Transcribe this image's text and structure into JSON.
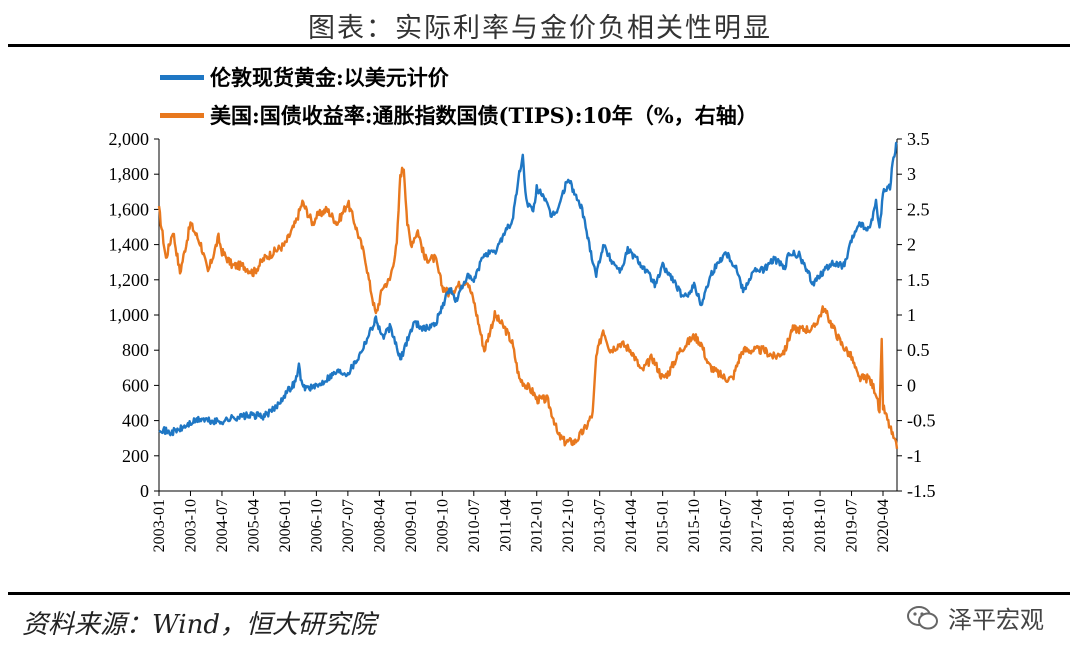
{
  "header": {
    "title": "图表：实际利率与金价负相关性明显"
  },
  "footer": {
    "source": "资料来源：Wind，恒大研究院",
    "brand": "泽平宏观"
  },
  "colors": {
    "gold": "#1f77c4",
    "tips": "#e8781e"
  },
  "chart_data": {
    "type": "line",
    "legend": [
      "伦敦现货黄金:以美元计价",
      "美国:国债收益率:通胀指数国债(TIPS):10年（%，右轴）"
    ],
    "left_axis": {
      "min": 0,
      "max": 2000,
      "ticks": [
        "0",
        "200",
        "400",
        "600",
        "800",
        "1,000",
        "1,200",
        "1,400",
        "1,600",
        "1,800",
        "2,000"
      ]
    },
    "right_axis": {
      "min": -1.5,
      "max": 3.5,
      "ticks": [
        "-1.5",
        "-1",
        "-0.5",
        "0",
        "0.5",
        "1",
        "1.5",
        "2",
        "2.5",
        "3",
        "3.5"
      ]
    },
    "x_ticks": [
      "2003-01",
      "2003-10",
      "2004-07",
      "2005-04",
      "2006-01",
      "2006-10",
      "2007-07",
      "2008-04",
      "2009-01",
      "2009-10",
      "2010-07",
      "2011-04",
      "2012-01",
      "2012-10",
      "2013-07",
      "2014-04",
      "2015-01",
      "2015-10",
      "2016-07",
      "2017-04",
      "2018-01",
      "2018-10",
      "2019-07",
      "2020-04"
    ],
    "x_range": [
      "2003-01",
      "2020-08"
    ],
    "series": [
      {
        "name": "伦敦现货黄金:以美元计价",
        "axis": "left",
        "points": [
          [
            "2003-01",
            360
          ],
          [
            "2003-04",
            330
          ],
          [
            "2003-07",
            350
          ],
          [
            "2003-10",
            385
          ],
          [
            "2004-01",
            410
          ],
          [
            "2004-04",
            395
          ],
          [
            "2004-07",
            395
          ],
          [
            "2004-10",
            415
          ],
          [
            "2005-01",
            425
          ],
          [
            "2005-04",
            430
          ],
          [
            "2005-07",
            425
          ],
          [
            "2005-10",
            465
          ],
          [
            "2006-01",
            550
          ],
          [
            "2006-04",
            620
          ],
          [
            "2006-05",
            710
          ],
          [
            "2006-06",
            590
          ],
          [
            "2006-10",
            590
          ],
          [
            "2007-01",
            640
          ],
          [
            "2007-04",
            680
          ],
          [
            "2007-07",
            670
          ],
          [
            "2007-10",
            760
          ],
          [
            "2008-01",
            890
          ],
          [
            "2008-03",
            980
          ],
          [
            "2008-05",
            870
          ],
          [
            "2008-07",
            930
          ],
          [
            "2008-09",
            820
          ],
          [
            "2008-10",
            740
          ],
          [
            "2008-12",
            860
          ],
          [
            "2009-02",
            960
          ],
          [
            "2009-05",
            920
          ],
          [
            "2009-08",
            950
          ],
          [
            "2009-10",
            1050
          ],
          [
            "2009-12",
            1150
          ],
          [
            "2010-02",
            1080
          ],
          [
            "2010-05",
            1220
          ],
          [
            "2010-07",
            1190
          ],
          [
            "2010-10",
            1350
          ],
          [
            "2011-01",
            1350
          ],
          [
            "2011-04",
            1480
          ],
          [
            "2011-06",
            1530
          ],
          [
            "2011-08",
            1800
          ],
          [
            "2011-09",
            1900
          ],
          [
            "2011-10",
            1650
          ],
          [
            "2011-12",
            1580
          ],
          [
            "2012-01",
            1720
          ],
          [
            "2012-03",
            1680
          ],
          [
            "2012-05",
            1560
          ],
          [
            "2012-07",
            1600
          ],
          [
            "2012-10",
            1780
          ],
          [
            "2012-12",
            1680
          ],
          [
            "2013-02",
            1600
          ],
          [
            "2013-04",
            1400
          ],
          [
            "2013-06",
            1230
          ],
          [
            "2013-08",
            1400
          ],
          [
            "2013-10",
            1320
          ],
          [
            "2014-01",
            1250
          ],
          [
            "2014-03",
            1370
          ],
          [
            "2014-06",
            1310
          ],
          [
            "2014-09",
            1230
          ],
          [
            "2014-11",
            1170
          ],
          [
            "2015-01",
            1280
          ],
          [
            "2015-04",
            1200
          ],
          [
            "2015-07",
            1090
          ],
          [
            "2015-10",
            1170
          ],
          [
            "2015-12",
            1060
          ],
          [
            "2016-03",
            1240
          ],
          [
            "2016-07",
            1360
          ],
          [
            "2016-10",
            1270
          ],
          [
            "2016-12",
            1140
          ],
          [
            "2017-03",
            1250
          ],
          [
            "2017-06",
            1260
          ],
          [
            "2017-09",
            1320
          ],
          [
            "2017-12",
            1260
          ],
          [
            "2018-01",
            1350
          ],
          [
            "2018-04",
            1340
          ],
          [
            "2018-08",
            1180
          ],
          [
            "2018-10",
            1230
          ],
          [
            "2019-01",
            1290
          ],
          [
            "2019-05",
            1280
          ],
          [
            "2019-07",
            1420
          ],
          [
            "2019-09",
            1520
          ],
          [
            "2019-12",
            1480
          ],
          [
            "2020-02",
            1640
          ],
          [
            "2020-03",
            1490
          ],
          [
            "2020-04",
            1700
          ],
          [
            "2020-06",
            1730
          ],
          [
            "2020-07",
            1900
          ],
          [
            "2020-08",
            1980
          ]
        ]
      },
      {
        "name": "美国:国债收益率:通胀指数国债(TIPS):10年（%，右轴）",
        "axis": "right",
        "points": [
          [
            "2003-01",
            2.5
          ],
          [
            "2003-03",
            1.8
          ],
          [
            "2003-05",
            2.2
          ],
          [
            "2003-07",
            1.6
          ],
          [
            "2003-10",
            2.3
          ],
          [
            "2004-01",
            2.0
          ],
          [
            "2004-03",
            1.6
          ],
          [
            "2004-06",
            2.1
          ],
          [
            "2004-07",
            1.9
          ],
          [
            "2004-10",
            1.7
          ],
          [
            "2005-01",
            1.7
          ],
          [
            "2005-04",
            1.6
          ],
          [
            "2005-07",
            1.8
          ],
          [
            "2005-10",
            1.9
          ],
          [
            "2006-01",
            2.0
          ],
          [
            "2006-04",
            2.3
          ],
          [
            "2006-06",
            2.6
          ],
          [
            "2006-09",
            2.3
          ],
          [
            "2006-10",
            2.4
          ],
          [
            "2007-01",
            2.5
          ],
          [
            "2007-04",
            2.3
          ],
          [
            "2007-07",
            2.6
          ],
          [
            "2007-09",
            2.3
          ],
          [
            "2007-12",
            1.8
          ],
          [
            "2008-01",
            1.5
          ],
          [
            "2008-03",
            1.0
          ],
          [
            "2008-05",
            1.4
          ],
          [
            "2008-07",
            1.5
          ],
          [
            "2008-09",
            2.0
          ],
          [
            "2008-10",
            3.0
          ],
          [
            "2008-11",
            3.1
          ],
          [
            "2008-12",
            2.3
          ],
          [
            "2009-01",
            2.0
          ],
          [
            "2009-03",
            2.2
          ],
          [
            "2009-05",
            1.8
          ],
          [
            "2009-08",
            1.8
          ],
          [
            "2009-10",
            1.4
          ],
          [
            "2009-12",
            1.3
          ],
          [
            "2010-02",
            1.4
          ],
          [
            "2010-05",
            1.5
          ],
          [
            "2010-07",
            1.2
          ],
          [
            "2010-10",
            0.5
          ],
          [
            "2011-01",
            1.0
          ],
          [
            "2011-04",
            0.8
          ],
          [
            "2011-06",
            0.6
          ],
          [
            "2011-08",
            0.1
          ],
          [
            "2011-10",
            0.0
          ],
          [
            "2011-12",
            -0.1
          ],
          [
            "2012-01",
            -0.2
          ],
          [
            "2012-04",
            -0.2
          ],
          [
            "2012-06",
            -0.5
          ],
          [
            "2012-07",
            -0.7
          ],
          [
            "2012-09",
            -0.8
          ],
          [
            "2012-10",
            -0.8
          ],
          [
            "2012-12",
            -0.8
          ],
          [
            "2013-03",
            -0.6
          ],
          [
            "2013-05",
            -0.4
          ],
          [
            "2013-06",
            0.4
          ],
          [
            "2013-08",
            0.8
          ],
          [
            "2013-10",
            0.5
          ],
          [
            "2014-01",
            0.6
          ],
          [
            "2014-04",
            0.5
          ],
          [
            "2014-07",
            0.2
          ],
          [
            "2014-10",
            0.4
          ],
          [
            "2015-01",
            0.1
          ],
          [
            "2015-03",
            0.2
          ],
          [
            "2015-06",
            0.5
          ],
          [
            "2015-08",
            0.6
          ],
          [
            "2015-10",
            0.7
          ],
          [
            "2015-12",
            0.6
          ],
          [
            "2016-02",
            0.3
          ],
          [
            "2016-04",
            0.2
          ],
          [
            "2016-07",
            0.1
          ],
          [
            "2016-09",
            0.1
          ],
          [
            "2016-11",
            0.4
          ],
          [
            "2016-12",
            0.5
          ],
          [
            "2017-03",
            0.5
          ],
          [
            "2017-06",
            0.5
          ],
          [
            "2017-09",
            0.4
          ],
          [
            "2017-12",
            0.5
          ],
          [
            "2018-02",
            0.8
          ],
          [
            "2018-05",
            0.8
          ],
          [
            "2018-08",
            0.8
          ],
          [
            "2018-10",
            1.0
          ],
          [
            "2018-11",
            1.1
          ],
          [
            "2019-01",
            0.9
          ],
          [
            "2019-04",
            0.6
          ],
          [
            "2019-07",
            0.4
          ],
          [
            "2019-09",
            0.1
          ],
          [
            "2019-12",
            0.1
          ],
          [
            "2020-02",
            -0.1
          ],
          [
            "2020-03",
            -0.4
          ],
          [
            "2020-03-20",
            0.6
          ],
          [
            "2020-04",
            -0.3
          ],
          [
            "2020-06",
            -0.6
          ],
          [
            "2020-08",
            -0.9
          ]
        ]
      }
    ]
  }
}
